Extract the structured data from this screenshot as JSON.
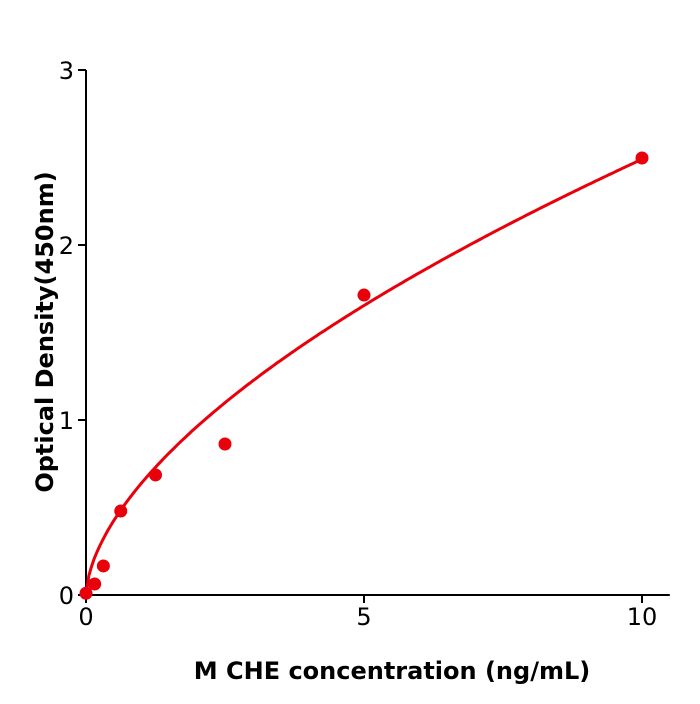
{
  "chart_data": {
    "type": "scatter",
    "title": "",
    "xlabel": "M  CHE concentration (ng/mL)",
    "ylabel": "Optical Density(450nm)",
    "xlim": [
      0,
      10.5
    ],
    "ylim": [
      0,
      3
    ],
    "x_ticks": [
      0,
      5,
      10
    ],
    "y_ticks": [
      0,
      1,
      2,
      3
    ],
    "grid": false,
    "colors": {
      "series": "#e8000b",
      "axis": "#000000"
    },
    "series": [
      {
        "points": [
          {
            "x": 0,
            "y": 0.01
          },
          {
            "x": 0.156,
            "y": 0.063
          },
          {
            "x": 0.3125,
            "y": 0.166
          },
          {
            "x": 0.625,
            "y": 0.48
          },
          {
            "x": 1.25,
            "y": 0.686
          },
          {
            "x": 2.5,
            "y": 0.863
          },
          {
            "x": 5,
            "y": 1.714
          },
          {
            "x": 10,
            "y": 2.497
          }
        ],
        "fit": {
          "model": "power",
          "a": 0.64,
          "b": 0.59
        }
      }
    ]
  }
}
